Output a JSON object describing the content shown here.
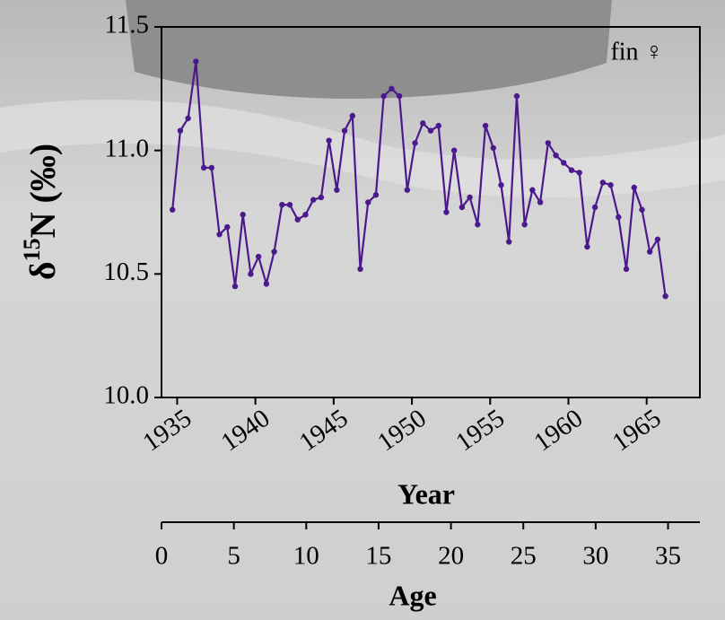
{
  "chart_data": {
    "type": "line",
    "ylabel": [
      "δ",
      "15",
      "N (‰)"
    ],
    "xlabel": "Year",
    "annotation": "fin ♀",
    "x": [
      1934.7,
      1935.2,
      1935.7,
      1936.2,
      1936.7,
      1937.2,
      1937.7,
      1938.2,
      1938.7,
      1939.2,
      1939.7,
      1940.2,
      1940.7,
      1941.2,
      1941.7,
      1942.2,
      1942.7,
      1943.2,
      1943.7,
      1944.2,
      1944.7,
      1945.2,
      1945.7,
      1946.2,
      1946.7,
      1947.2,
      1947.7,
      1948.2,
      1948.7,
      1949.2,
      1949.7,
      1950.2,
      1950.7,
      1951.2,
      1951.7,
      1952.2,
      1952.7,
      1953.2,
      1953.7,
      1954.2,
      1954.7,
      1955.2,
      1955.7,
      1956.2,
      1956.7,
      1957.2,
      1957.7,
      1958.2,
      1958.7,
      1959.2,
      1959.7,
      1960.2,
      1960.7,
      1961.2,
      1961.7,
      1962.2,
      1962.7,
      1963.2,
      1963.7,
      1964.2,
      1964.7,
      1965.2,
      1965.7,
      1966.2
    ],
    "series": [
      {
        "color": "#4a1a8c",
        "values": [
          10.76,
          11.08,
          11.13,
          11.36,
          10.93,
          10.93,
          10.66,
          10.69,
          10.45,
          10.74,
          10.5,
          10.57,
          10.46,
          10.59,
          10.78,
          10.78,
          10.72,
          10.74,
          10.8,
          10.81,
          11.04,
          10.84,
          11.08,
          11.14,
          10.52,
          10.79,
          10.82,
          11.22,
          11.25,
          11.22,
          10.84,
          11.03,
          11.11,
          11.08,
          11.1,
          10.75,
          11.0,
          10.77,
          10.81,
          10.7,
          11.1,
          11.01,
          10.86,
          10.63,
          11.22,
          10.7,
          10.84,
          10.79,
          11.03,
          10.98,
          10.95,
          10.92,
          10.91,
          10.61,
          10.77,
          10.87,
          10.86,
          10.73,
          10.52,
          10.85,
          10.76,
          10.59,
          10.64,
          10.41
        ]
      }
    ],
    "xlim": [
      1934,
      1968.4
    ],
    "xticks": [
      1935,
      1940,
      1945,
      1950,
      1955,
      1960,
      1965
    ],
    "ylim": [
      10.0,
      11.5
    ],
    "yticks": [
      {
        "value": 10.0,
        "label": "10.0"
      },
      {
        "value": 10.5,
        "label": "10.5"
      },
      {
        "value": 11.0,
        "label": "11.0"
      },
      {
        "value": 11.5,
        "label": "11.5"
      }
    ],
    "x2label": "Age",
    "x2lim": [
      0,
      37.2
    ],
    "x2ticks": [
      0,
      5,
      10,
      15,
      20,
      25,
      30,
      35
    ]
  }
}
